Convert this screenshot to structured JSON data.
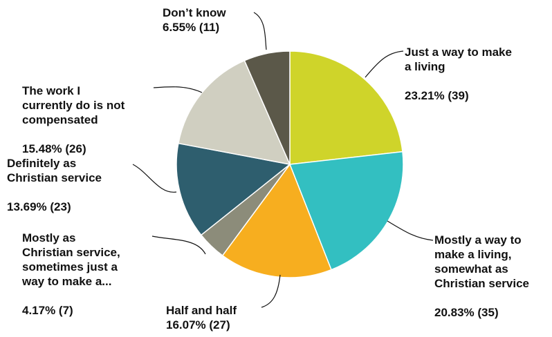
{
  "chart_data": {
    "type": "pie",
    "title": "",
    "slices": [
      {
        "label": "Just a way to make\na living",
        "value_text": "23.21% (39)",
        "percent": 23.21,
        "count": 39,
        "color": "#cfd42a"
      },
      {
        "label": "Mostly a way to\nmake a living,\nsomewhat as\nChristian service",
        "value_text": "20.83% (35)",
        "percent": 20.83,
        "count": 35,
        "color": "#33bfc1"
      },
      {
        "label": "Half and half",
        "value_text": "16.07% (27)",
        "percent": 16.07,
        "count": 27,
        "color": "#f7ae1f"
      },
      {
        "label": "Mostly as\nChristian service,\nsometimes just a\nway to make a...",
        "value_text": "4.17% (7)",
        "percent": 4.17,
        "count": 7,
        "color": "#8c8c7a"
      },
      {
        "label": "Definitely as\nChristian service",
        "value_text": "13.69% (23)",
        "percent": 13.69,
        "count": 23,
        "color": "#2e5e6e"
      },
      {
        "label": "The work I\ncurrently do is not\ncompensated",
        "value_text": "15.48% (26)",
        "percent": 15.48,
        "count": 26,
        "color": "#d0cfc1"
      },
      {
        "label": "Don’t know",
        "value_text": "6.55% (11)",
        "percent": 6.55,
        "count": 11,
        "color": "#5b5849"
      }
    ]
  }
}
